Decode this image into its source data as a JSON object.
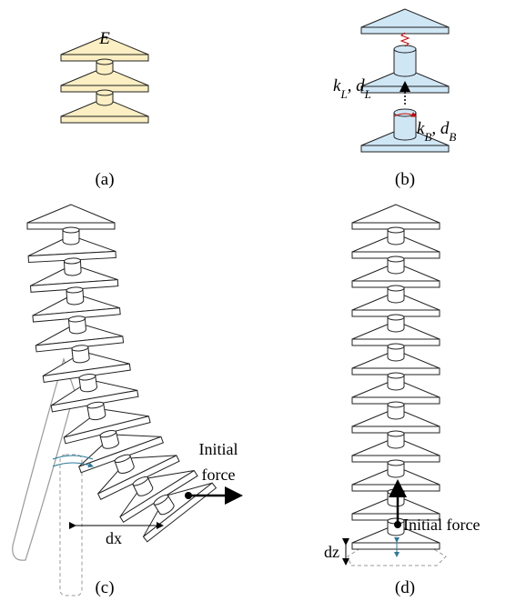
{
  "panels": [
    {
      "caption": "(a)",
      "labels": [
        [
          "E"
        ]
      ]
    },
    {
      "caption": "(b)",
      "labels": [
        [
          "k",
          "L",
          ", ",
          "d",
          "L"
        ],
        [
          "k",
          "B",
          ", ",
          "d",
          "B"
        ]
      ]
    },
    {
      "caption": "(c)",
      "labels": [
        [
          "Initial"
        ],
        [
          "force"
        ],
        [
          "dx"
        ]
      ]
    },
    {
      "caption": "(d)",
      "labels": [
        [
          "Initial force"
        ],
        [
          "dz"
        ]
      ]
    }
  ]
}
